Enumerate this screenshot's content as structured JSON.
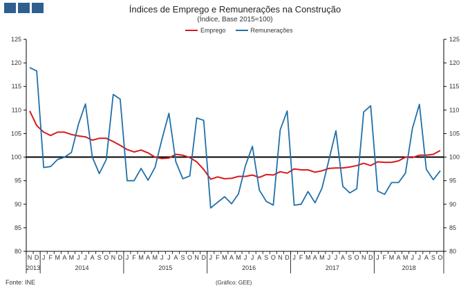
{
  "header": {
    "title": "Índices de Emprego e Remunerações na Construção",
    "subtitle": "(Índice, Base 2015=100)"
  },
  "footer": {
    "source": "Fonte: INE",
    "credit": "(Gráfico: GEE)"
  },
  "colors": {
    "emprego": "#d7191c",
    "remuneracoes": "#1f6fa8",
    "baseline": "#000000",
    "logo": "#2f5f8f"
  },
  "chart_data": {
    "type": "line",
    "title": "Índices de Emprego e Remunerações na Construção",
    "subtitle": "(Índice, Base 2015=100)",
    "ylim": [
      80,
      125
    ],
    "yticks": [
      80,
      85,
      90,
      95,
      100,
      105,
      110,
      115,
      120,
      125
    ],
    "reference_line": 100,
    "month_labels": [
      "N",
      "D",
      "J",
      "F",
      "M",
      "A",
      "M",
      "J",
      "J",
      "A",
      "S",
      "O",
      "N",
      "D",
      "J",
      "F",
      "M",
      "A",
      "M",
      "J",
      "J",
      "A",
      "S",
      "O",
      "N",
      "D",
      "J",
      "F",
      "M",
      "A",
      "M",
      "J",
      "J",
      "A",
      "S",
      "O",
      "N",
      "D",
      "J",
      "F",
      "M",
      "A",
      "M",
      "J",
      "J",
      "A",
      "S",
      "O",
      "N",
      "D",
      "J",
      "F",
      "M",
      "A",
      "M",
      "J",
      "J",
      "A",
      "S",
      "O"
    ],
    "year_labels": [
      {
        "label": "2013",
        "center_index": 0.5
      },
      {
        "label": "2014",
        "center_index": 7.5
      },
      {
        "label": "2015",
        "center_index": 19.5
      },
      {
        "label": "2016",
        "center_index": 31.5
      },
      {
        "label": "2017",
        "center_index": 43.5
      },
      {
        "label": "2018",
        "center_index": 54.5
      }
    ],
    "year_separators": [
      1.5,
      13.5,
      25.5,
      37.5,
      49.5
    ],
    "series": [
      {
        "name": "Emprego",
        "values": [
          109.8,
          106.7,
          105.3,
          104.6,
          105.3,
          105.3,
          104.8,
          104.5,
          104.3,
          103.6,
          104.0,
          104.0,
          103.3,
          102.5,
          101.6,
          101.1,
          101.5,
          100.9,
          100.0,
          99.7,
          99.8,
          100.6,
          100.4,
          99.9,
          99.0,
          97.4,
          95.3,
          95.8,
          95.4,
          95.5,
          95.9,
          95.9,
          96.2,
          95.7,
          96.3,
          96.2,
          96.9,
          96.6,
          97.5,
          97.3,
          97.3,
          96.8,
          97.1,
          97.6,
          97.7,
          97.7,
          97.9,
          98.2,
          98.7,
          98.2,
          99.0,
          98.9,
          98.9,
          99.2,
          100.0,
          99.9,
          100.4,
          100.4,
          100.6,
          101.4
        ]
      },
      {
        "name": "Remunerações",
        "values": [
          119.0,
          118.3,
          97.8,
          98.0,
          99.5,
          100.0,
          101.0,
          107.0,
          111.3,
          100.0,
          96.5,
          99.5,
          113.3,
          112.3,
          95.0,
          95.0,
          97.6,
          95.1,
          97.8,
          103.8,
          109.3,
          99.0,
          95.4,
          96.0,
          108.3,
          107.8,
          89.2,
          90.4,
          91.6,
          90.1,
          92.2,
          98.2,
          102.3,
          93.0,
          90.6,
          89.8,
          105.8,
          109.8,
          89.8,
          90.0,
          92.7,
          90.3,
          93.4,
          99.4,
          105.6,
          93.8,
          92.4,
          93.3,
          109.6,
          110.9,
          92.8,
          92.1,
          94.6,
          94.6,
          96.6,
          106.1,
          111.2,
          97.4,
          95.2,
          97.1
        ]
      }
    ]
  }
}
